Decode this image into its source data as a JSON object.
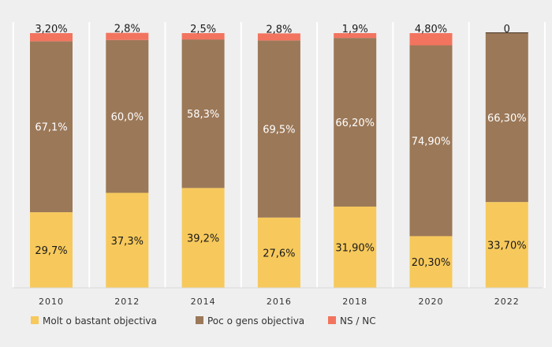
{
  "chart_data": {
    "type": "stacked-bar",
    "categories": [
      "2010",
      "2012",
      "2014",
      "2016",
      "2018",
      "2020",
      "2022"
    ],
    "ylim": [
      0,
      100
    ],
    "series": [
      {
        "name": "Molt o bastant objectiva",
        "color": "#f7c95c",
        "values": [
          29.7,
          37.3,
          39.2,
          27.6,
          31.9,
          20.3,
          33.7
        ],
        "labels": [
          "29,7%",
          "37,3%",
          "39,2%",
          "27,6%",
          "31,90%",
          "20,30%",
          "33,70%"
        ]
      },
      {
        "name": "Poc o gens objectiva",
        "color": "#9b7858",
        "values": [
          67.1,
          60.0,
          58.3,
          69.5,
          66.2,
          74.9,
          66.3
        ],
        "labels": [
          "67,1%",
          "60,0%",
          "58,3%",
          "69,5%",
          "66,20%",
          "74,90%",
          "66,30%"
        ]
      },
      {
        "name": "NS / NC",
        "color": "#f2745f",
        "values": [
          3.2,
          2.8,
          2.5,
          2.8,
          1.9,
          4.8,
          0
        ],
        "labels": [
          "3,20%",
          "2,8%",
          "2,5%",
          "2,8%",
          "1,9%",
          "4,80%",
          "0"
        ]
      }
    ],
    "legend_position": "bottom"
  }
}
